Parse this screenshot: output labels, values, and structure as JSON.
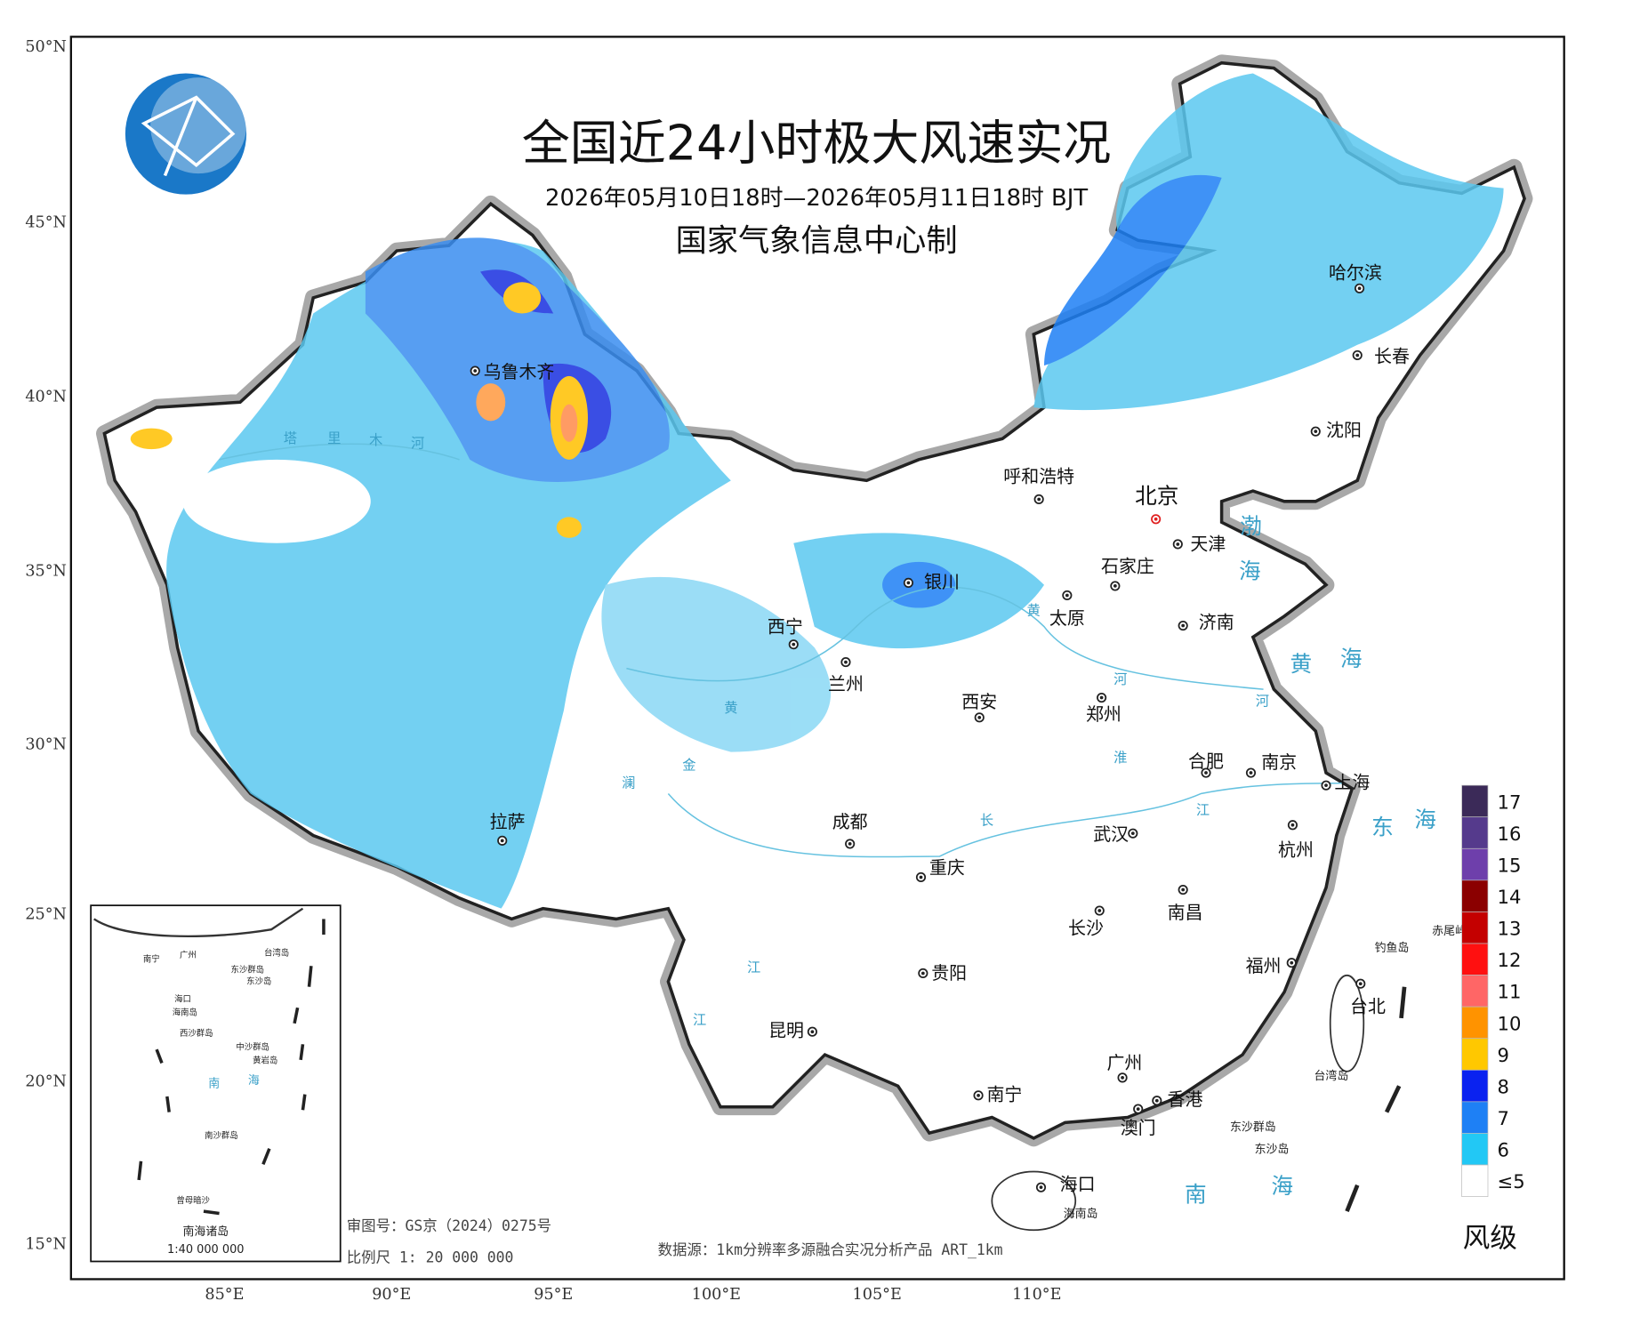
{
  "header": {
    "title": "全国近24小时极大风速实况",
    "subtitle": "2026年05月10日18时—2026年05月11日18时 BJT",
    "organization": "国家气象信息中心制"
  },
  "axes": {
    "lat_labels": [
      "50°N",
      "45°N",
      "40°N",
      "35°N",
      "30°N",
      "25°N",
      "20°N",
      "15°N"
    ],
    "lon_labels": [
      "85°E",
      "90°E",
      "95°E",
      "100°E",
      "105°E",
      "110°E"
    ]
  },
  "cities": [
    {
      "label": "乌鲁木齐"
    },
    {
      "label": "哈尔滨"
    },
    {
      "label": "长春"
    },
    {
      "label": "沈阳"
    },
    {
      "label": "呼和浩特"
    },
    {
      "label": "北京"
    },
    {
      "label": "天津"
    },
    {
      "label": "石家庄"
    },
    {
      "label": "银川"
    },
    {
      "label": "太原"
    },
    {
      "label": "济南"
    },
    {
      "label": "西宁"
    },
    {
      "label": "兰州"
    },
    {
      "label": "西安"
    },
    {
      "label": "郑州"
    },
    {
      "label": "合肥"
    },
    {
      "label": "南京"
    },
    {
      "label": "上海"
    },
    {
      "label": "拉萨"
    },
    {
      "label": "成都"
    },
    {
      "label": "武汉"
    },
    {
      "label": "杭州"
    },
    {
      "label": "重庆"
    },
    {
      "label": "南昌"
    },
    {
      "label": "长沙"
    },
    {
      "label": "福州"
    },
    {
      "label": "贵阳"
    },
    {
      "label": "台北"
    },
    {
      "label": "昆明"
    },
    {
      "label": "广州"
    },
    {
      "label": "南宁"
    },
    {
      "label": "香港"
    },
    {
      "label": "澳门"
    },
    {
      "label": "海口"
    }
  ],
  "places": [
    "海南岛",
    "东沙群岛",
    "东沙岛",
    "钓鱼岛",
    "赤尾屿",
    "台湾岛"
  ],
  "seas": [
    "渤",
    "海",
    "黄",
    "海",
    "东",
    "海",
    "南",
    "海"
  ],
  "rivers": [
    "塔",
    "里",
    "木",
    "河",
    "黄",
    "河",
    "长",
    "江",
    "江",
    "江",
    "黄",
    "淮",
    "河",
    "金",
    "澜"
  ],
  "legend": {
    "title": "风级",
    "levels": [
      {
        "label": "17",
        "color": "#3b2a58"
      },
      {
        "label": "16",
        "color": "#553a8c"
      },
      {
        "label": "15",
        "color": "#6e3fab"
      },
      {
        "label": "14",
        "color": "#8b0000"
      },
      {
        "label": "13",
        "color": "#c40000"
      },
      {
        "label": "12",
        "color": "#ff1010"
      },
      {
        "label": "11",
        "color": "#ff6666"
      },
      {
        "label": "10",
        "color": "#ff9300"
      },
      {
        "label": "9",
        "color": "#ffc800"
      },
      {
        "label": "8",
        "color": "#0a22f0"
      },
      {
        "label": "7",
        "color": "#1e80f5"
      },
      {
        "label": "6",
        "color": "#22c8f5"
      },
      {
        "label": "≤5",
        "color": "#ffffff"
      }
    ]
  },
  "footer": {
    "approval": "审图号：GS京（2024）0275号",
    "scale": "比例尺 1: 20 000 000",
    "source": "数据源：1km分辨率多源融合实况分析产品 ART_1km"
  },
  "inset": {
    "labels": [
      "南宁",
      "广州",
      "台湾岛",
      "海口",
      "海南岛",
      "东沙群岛",
      "东沙岛",
      "西沙群岛",
      "中沙群岛",
      "黄岩岛",
      "南",
      "海",
      "南沙群岛",
      "曾母暗沙"
    ],
    "title": "南海诸岛",
    "scale": "1:40 000 000"
  }
}
